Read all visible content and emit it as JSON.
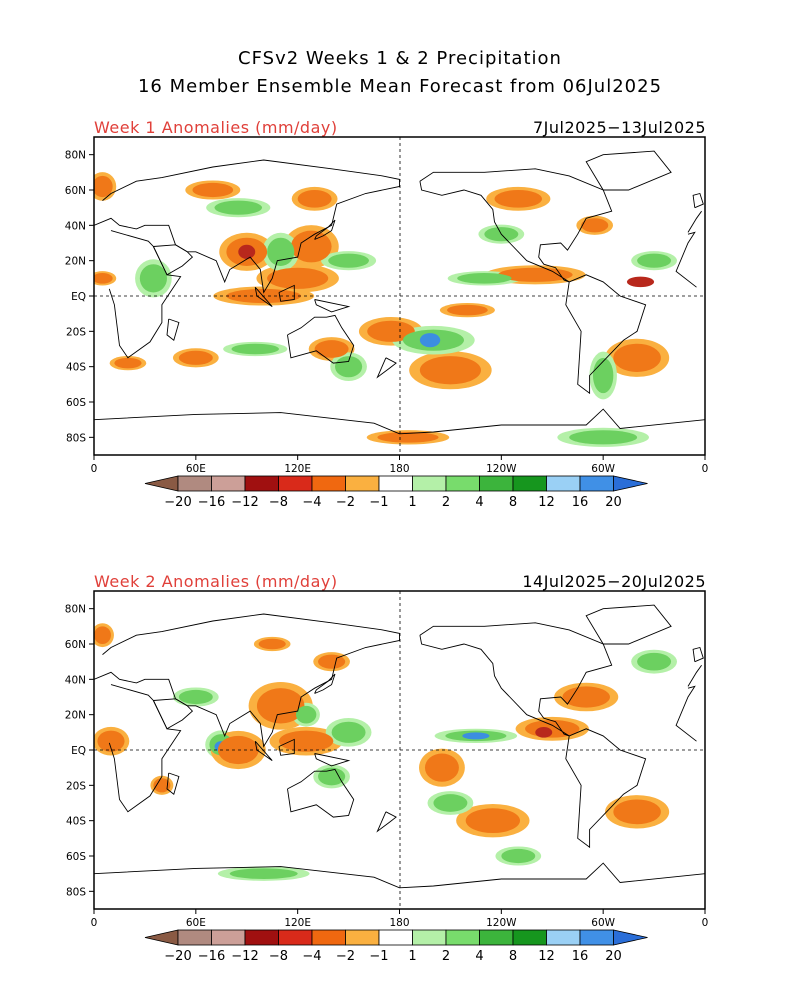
{
  "title_line1": "CFSv2 Weeks 1 & 2 Precipitation",
  "title_line2": "16 Member Ensemble Mean Forecast from 06Jul2025",
  "panels": [
    {
      "label": "Week 1 Anomalies (mm/day)",
      "dates": "7Jul2025−13Jul2025"
    },
    {
      "label": "Week 2 Anomalies (mm/day)",
      "dates": "14Jul2025−20Jul2025"
    }
  ],
  "lat_labels": [
    "80N",
    "60N",
    "40N",
    "20N",
    "EQ",
    "20S",
    "40S",
    "60S",
    "80S"
  ],
  "lon_labels": [
    "0",
    "60E",
    "120E",
    "180",
    "120W",
    "60W",
    "0"
  ],
  "colorbar": {
    "labels": [
      "−20",
      "−16",
      "−12",
      "−8",
      "−4",
      "−2",
      "−1",
      "1",
      "2",
      "4",
      "8",
      "12",
      "16",
      "20"
    ],
    "colors": [
      "#8a5a44",
      "#b08a80",
      "#cc9f98",
      "#a01010",
      "#d92a1a",
      "#f06810",
      "#fab040",
      "#ffffff",
      "#b4f0a8",
      "#78dc6c",
      "#3cb43c",
      "#16961e",
      "#9ad0f5",
      "#4090e6",
      "#2a6ed8"
    ]
  },
  "features": {
    "week1": [
      {
        "t": "dry",
        "lon": 90,
        "lat": 25,
        "rx": 12,
        "ry": 8
      },
      {
        "t": "vdry",
        "lon": 90,
        "lat": 25,
        "rx": 5,
        "ry": 4
      },
      {
        "t": "dry",
        "lon": 128,
        "lat": 28,
        "rx": 12,
        "ry": 9
      },
      {
        "t": "dry",
        "lon": 120,
        "lat": 10,
        "rx": 18,
        "ry": 6
      },
      {
        "t": "dry",
        "lon": 100,
        "lat": 0,
        "rx": 22,
        "ry": 4
      },
      {
        "t": "dry",
        "lon": 175,
        "lat": -20,
        "rx": 14,
        "ry": 6
      },
      {
        "t": "dry",
        "lon": 210,
        "lat": -42,
        "rx": 18,
        "ry": 8
      },
      {
        "t": "dry",
        "lon": 320,
        "lat": -35,
        "rx": 14,
        "ry": 8
      },
      {
        "t": "dry",
        "lon": 260,
        "lat": 12,
        "rx": 22,
        "ry": 4
      },
      {
        "t": "vdry",
        "lon": 322,
        "lat": 8,
        "rx": 8,
        "ry": 3
      },
      {
        "t": "dry",
        "lon": 5,
        "lat": 10,
        "rx": 6,
        "ry": 3
      },
      {
        "t": "dry",
        "lon": 70,
        "lat": 60,
        "rx": 12,
        "ry": 4
      },
      {
        "t": "dry",
        "lon": 130,
        "lat": 55,
        "rx": 10,
        "ry": 5
      },
      {
        "t": "dry",
        "lon": 5,
        "lat": 62,
        "rx": 6,
        "ry": 6
      },
      {
        "t": "dry",
        "lon": 140,
        "lat": -30,
        "rx": 10,
        "ry": 5
      },
      {
        "t": "dry",
        "lon": 250,
        "lat": 55,
        "rx": 14,
        "ry": 5
      },
      {
        "t": "dry",
        "lon": 295,
        "lat": 40,
        "rx": 8,
        "ry": 4
      },
      {
        "t": "dry",
        "lon": 220,
        "lat": -8,
        "rx": 12,
        "ry": 3
      },
      {
        "t": "wet",
        "lon": 200,
        "lat": -25,
        "rx": 18,
        "ry": 6
      },
      {
        "t": "vwet",
        "lon": 198,
        "lat": -25,
        "rx": 6,
        "ry": 4
      },
      {
        "t": "wet",
        "lon": 150,
        "lat": -40,
        "rx": 8,
        "ry": 6
      },
      {
        "t": "wet",
        "lon": 300,
        "lat": -45,
        "rx": 6,
        "ry": 10
      },
      {
        "t": "wet",
        "lon": 35,
        "lat": 10,
        "rx": 8,
        "ry": 8
      },
      {
        "t": "wet",
        "lon": 110,
        "lat": 25,
        "rx": 8,
        "ry": 8
      },
      {
        "t": "wet",
        "lon": 150,
        "lat": 20,
        "rx": 12,
        "ry": 4
      },
      {
        "t": "wet",
        "lon": 85,
        "lat": 50,
        "rx": 14,
        "ry": 4
      },
      {
        "t": "wet",
        "lon": 240,
        "lat": 35,
        "rx": 10,
        "ry": 4
      },
      {
        "t": "wet",
        "lon": 300,
        "lat": -80,
        "rx": 20,
        "ry": 4
      },
      {
        "t": "wet",
        "lon": 230,
        "lat": 10,
        "rx": 16,
        "ry": 3
      },
      {
        "t": "wet",
        "lon": 330,
        "lat": 20,
        "rx": 10,
        "ry": 4
      },
      {
        "t": "dry",
        "lon": 60,
        "lat": -35,
        "rx": 10,
        "ry": 4
      },
      {
        "t": "dry",
        "lon": 20,
        "lat": -38,
        "rx": 8,
        "ry": 3
      },
      {
        "t": "wet",
        "lon": 95,
        "lat": -30,
        "rx": 14,
        "ry": 3
      },
      {
        "t": "dry",
        "lon": 185,
        "lat": -80,
        "rx": 18,
        "ry": 3
      }
    ],
    "week2": [
      {
        "t": "wet",
        "lon": 75,
        "lat": 3,
        "rx": 7,
        "ry": 6
      },
      {
        "t": "vwet",
        "lon": 75,
        "lat": 2,
        "rx": 4,
        "ry": 3
      },
      {
        "t": "dry",
        "lon": 85,
        "lat": 0,
        "rx": 12,
        "ry": 8
      },
      {
        "t": "dry",
        "lon": 125,
        "lat": 5,
        "rx": 16,
        "ry": 6
      },
      {
        "t": "wet",
        "lon": 140,
        "lat": -15,
        "rx": 8,
        "ry": 5
      },
      {
        "t": "wet",
        "lon": 225,
        "lat": 8,
        "rx": 18,
        "ry": 3
      },
      {
        "t": "vwet",
        "lon": 225,
        "lat": 8,
        "rx": 8,
        "ry": 2
      },
      {
        "t": "dry",
        "lon": 270,
        "lat": 12,
        "rx": 16,
        "ry": 5
      },
      {
        "t": "vdry",
        "lon": 265,
        "lat": 10,
        "rx": 5,
        "ry": 3
      },
      {
        "t": "dry",
        "lon": 205,
        "lat": -10,
        "rx": 10,
        "ry": 8
      },
      {
        "t": "dry",
        "lon": 235,
        "lat": -40,
        "rx": 16,
        "ry": 7
      },
      {
        "t": "dry",
        "lon": 320,
        "lat": -35,
        "rx": 14,
        "ry": 7
      },
      {
        "t": "dry",
        "lon": 290,
        "lat": 30,
        "rx": 14,
        "ry": 6
      },
      {
        "t": "dry",
        "lon": 110,
        "lat": 25,
        "rx": 14,
        "ry": 10
      },
      {
        "t": "wet",
        "lon": 125,
        "lat": 20,
        "rx": 6,
        "ry": 5
      },
      {
        "t": "dry",
        "lon": 10,
        "lat": 5,
        "rx": 8,
        "ry": 6
      },
      {
        "t": "wet",
        "lon": 210,
        "lat": -30,
        "rx": 10,
        "ry": 5
      },
      {
        "t": "wet",
        "lon": 100,
        "lat": -70,
        "rx": 20,
        "ry": 3
      },
      {
        "t": "wet",
        "lon": 250,
        "lat": -60,
        "rx": 10,
        "ry": 4
      },
      {
        "t": "dry",
        "lon": 5,
        "lat": 65,
        "rx": 5,
        "ry": 5
      },
      {
        "t": "dry",
        "lon": 40,
        "lat": -20,
        "rx": 5,
        "ry": 4
      },
      {
        "t": "wet",
        "lon": 330,
        "lat": 50,
        "rx": 10,
        "ry": 5
      },
      {
        "t": "wet",
        "lon": 150,
        "lat": 10,
        "rx": 10,
        "ry": 6
      },
      {
        "t": "dry",
        "lon": 105,
        "lat": 60,
        "rx": 8,
        "ry": 3
      },
      {
        "t": "dry",
        "lon": 140,
        "lat": 50,
        "rx": 8,
        "ry": 4
      },
      {
        "t": "wet",
        "lon": 60,
        "lat": 30,
        "rx": 10,
        "ry": 4
      }
    ]
  }
}
